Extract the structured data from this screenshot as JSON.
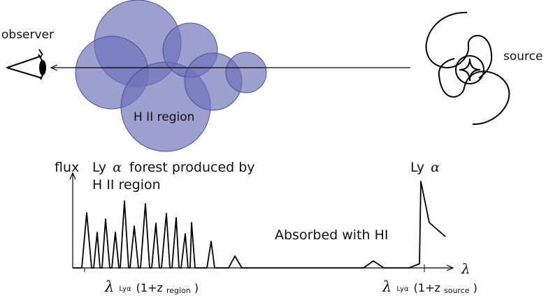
{
  "top": {
    "observer_label": "observer",
    "source_label": "source",
    "region_label": "H II region",
    "colors": {
      "cloud_fill": "#6f72b8",
      "cloud_stroke": "#4b4f9c",
      "ink": "#000000"
    },
    "icons": [
      "eye-icon",
      "spiral-galaxy-icon"
    ]
  },
  "bottom": {
    "y_axis_label": "flux",
    "forest_label_prefix": "Ly",
    "forest_label_greek": "α",
    "forest_label_rest": "forest produced by",
    "forest_label_line2": "H II region",
    "lya_label_prefix": "Ly",
    "lya_label_greek": "α",
    "absorbed_label": "Absorbed with HI",
    "x_axis_symbol": "λ",
    "tick_region": {
      "lambda": "λ",
      "sub": "Lyα",
      "open": "(1+z",
      "zsub": "region",
      "close": ")"
    },
    "tick_source": {
      "lambda": "λ",
      "sub": "Lyα",
      "open": "(1+z",
      "zsub": "source",
      "close": ")"
    }
  }
}
